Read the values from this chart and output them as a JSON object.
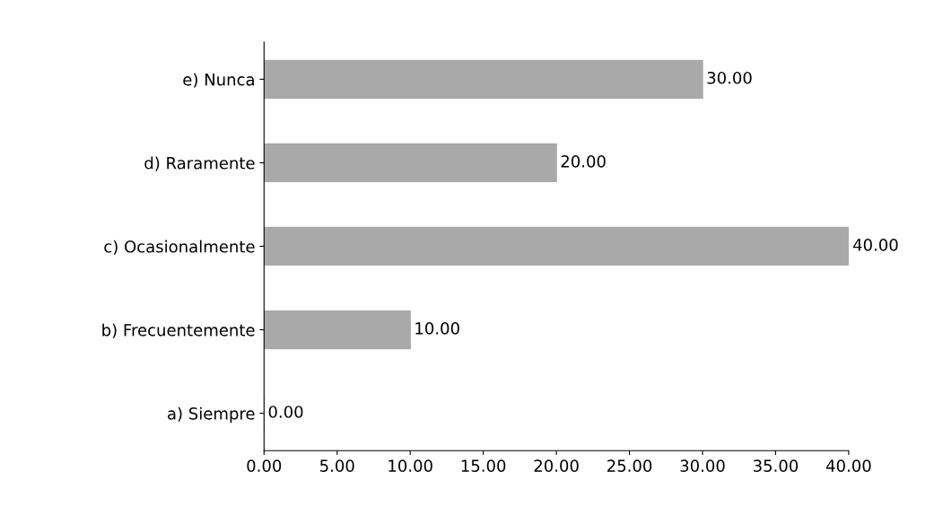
{
  "chart_data": {
    "type": "bar",
    "orientation": "horizontal",
    "categories": [
      "e) Nunca",
      "d) Raramente",
      "c) Ocasionalmente",
      "b) Frecuentemente",
      "a) Siempre"
    ],
    "values": [
      30,
      20,
      40,
      10,
      0
    ],
    "value_labels": [
      "30.00",
      "20.00",
      "40.00",
      "10.00",
      "0.00"
    ],
    "color": "#a9a9a9",
    "xlim": [
      0,
      40
    ],
    "xticks": [
      {
        "value": 0,
        "label": "0.00"
      },
      {
        "value": 5,
        "label": "5.00"
      },
      {
        "value": 10,
        "label": "10.00"
      },
      {
        "value": 15,
        "label": "15.00"
      },
      {
        "value": 20,
        "label": "20.00"
      },
      {
        "value": 25,
        "label": "25.00"
      },
      {
        "value": 30,
        "label": "30.00"
      },
      {
        "value": 35,
        "label": "35.00"
      },
      {
        "value": 40,
        "label": "40.00"
      }
    ],
    "grid": false
  }
}
